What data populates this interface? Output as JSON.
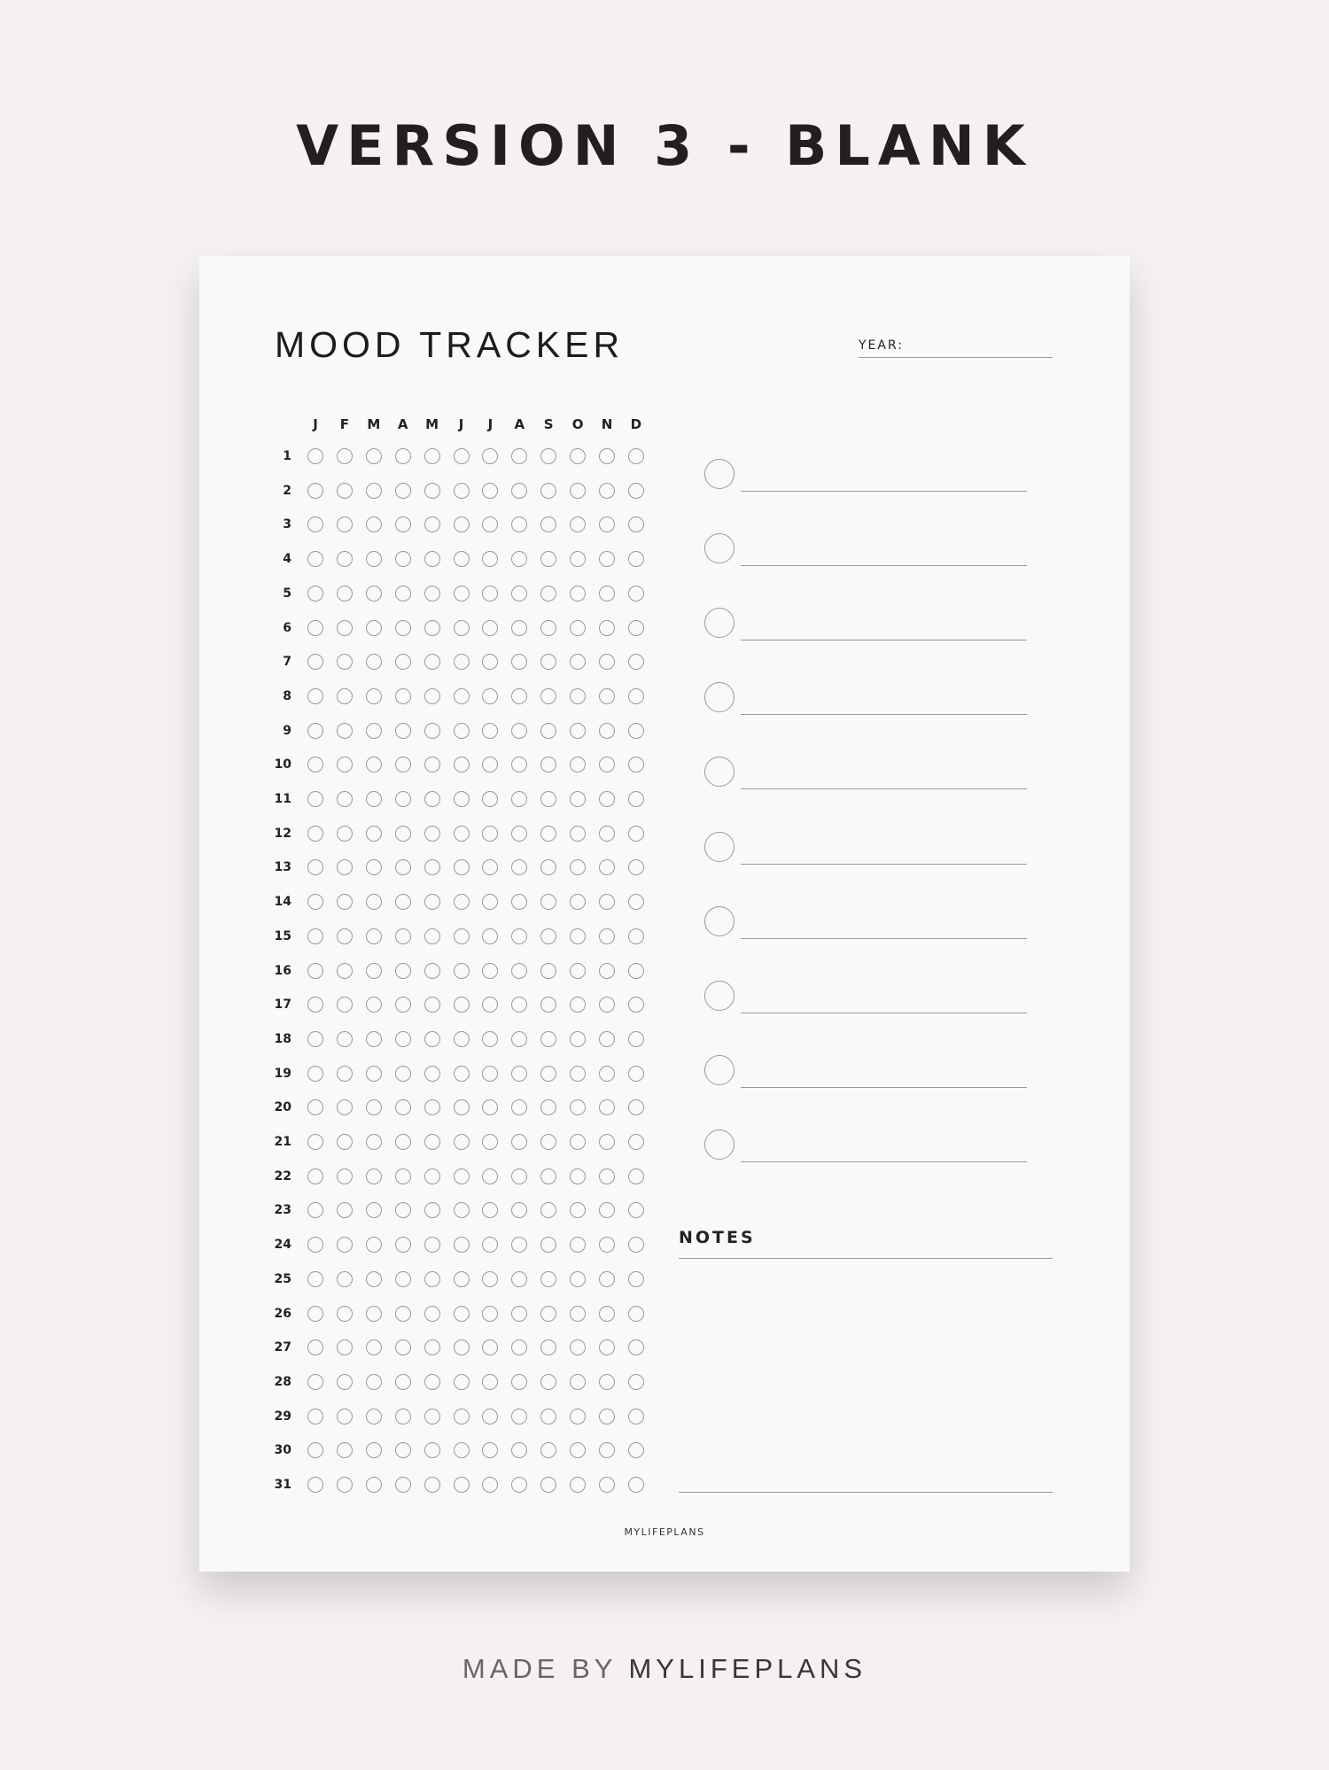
{
  "heading": "VERSION 3 - BLANK",
  "sheet": {
    "title": "MOOD TRACKER",
    "year_label": "YEAR:",
    "months": [
      "J",
      "F",
      "M",
      "A",
      "M",
      "J",
      "J",
      "A",
      "S",
      "O",
      "N",
      "D"
    ],
    "days": [
      "1",
      "2",
      "3",
      "4",
      "5",
      "6",
      "7",
      "8",
      "9",
      "10",
      "11",
      "12",
      "13",
      "14",
      "15",
      "16",
      "17",
      "18",
      "19",
      "20",
      "21",
      "22",
      "23",
      "24",
      "25",
      "26",
      "27",
      "28",
      "29",
      "30",
      "31"
    ],
    "legend_count": 10,
    "notes_label": "NOTES",
    "brand": "MYLIFEPLANS"
  },
  "footer": {
    "prefix": "MADE BY ",
    "brand": "MYLIFEPLANS"
  },
  "colors": {
    "background": "#f5f0f2",
    "paper": "#f9f9f9",
    "circle_stroke": "#9a9a9a"
  }
}
